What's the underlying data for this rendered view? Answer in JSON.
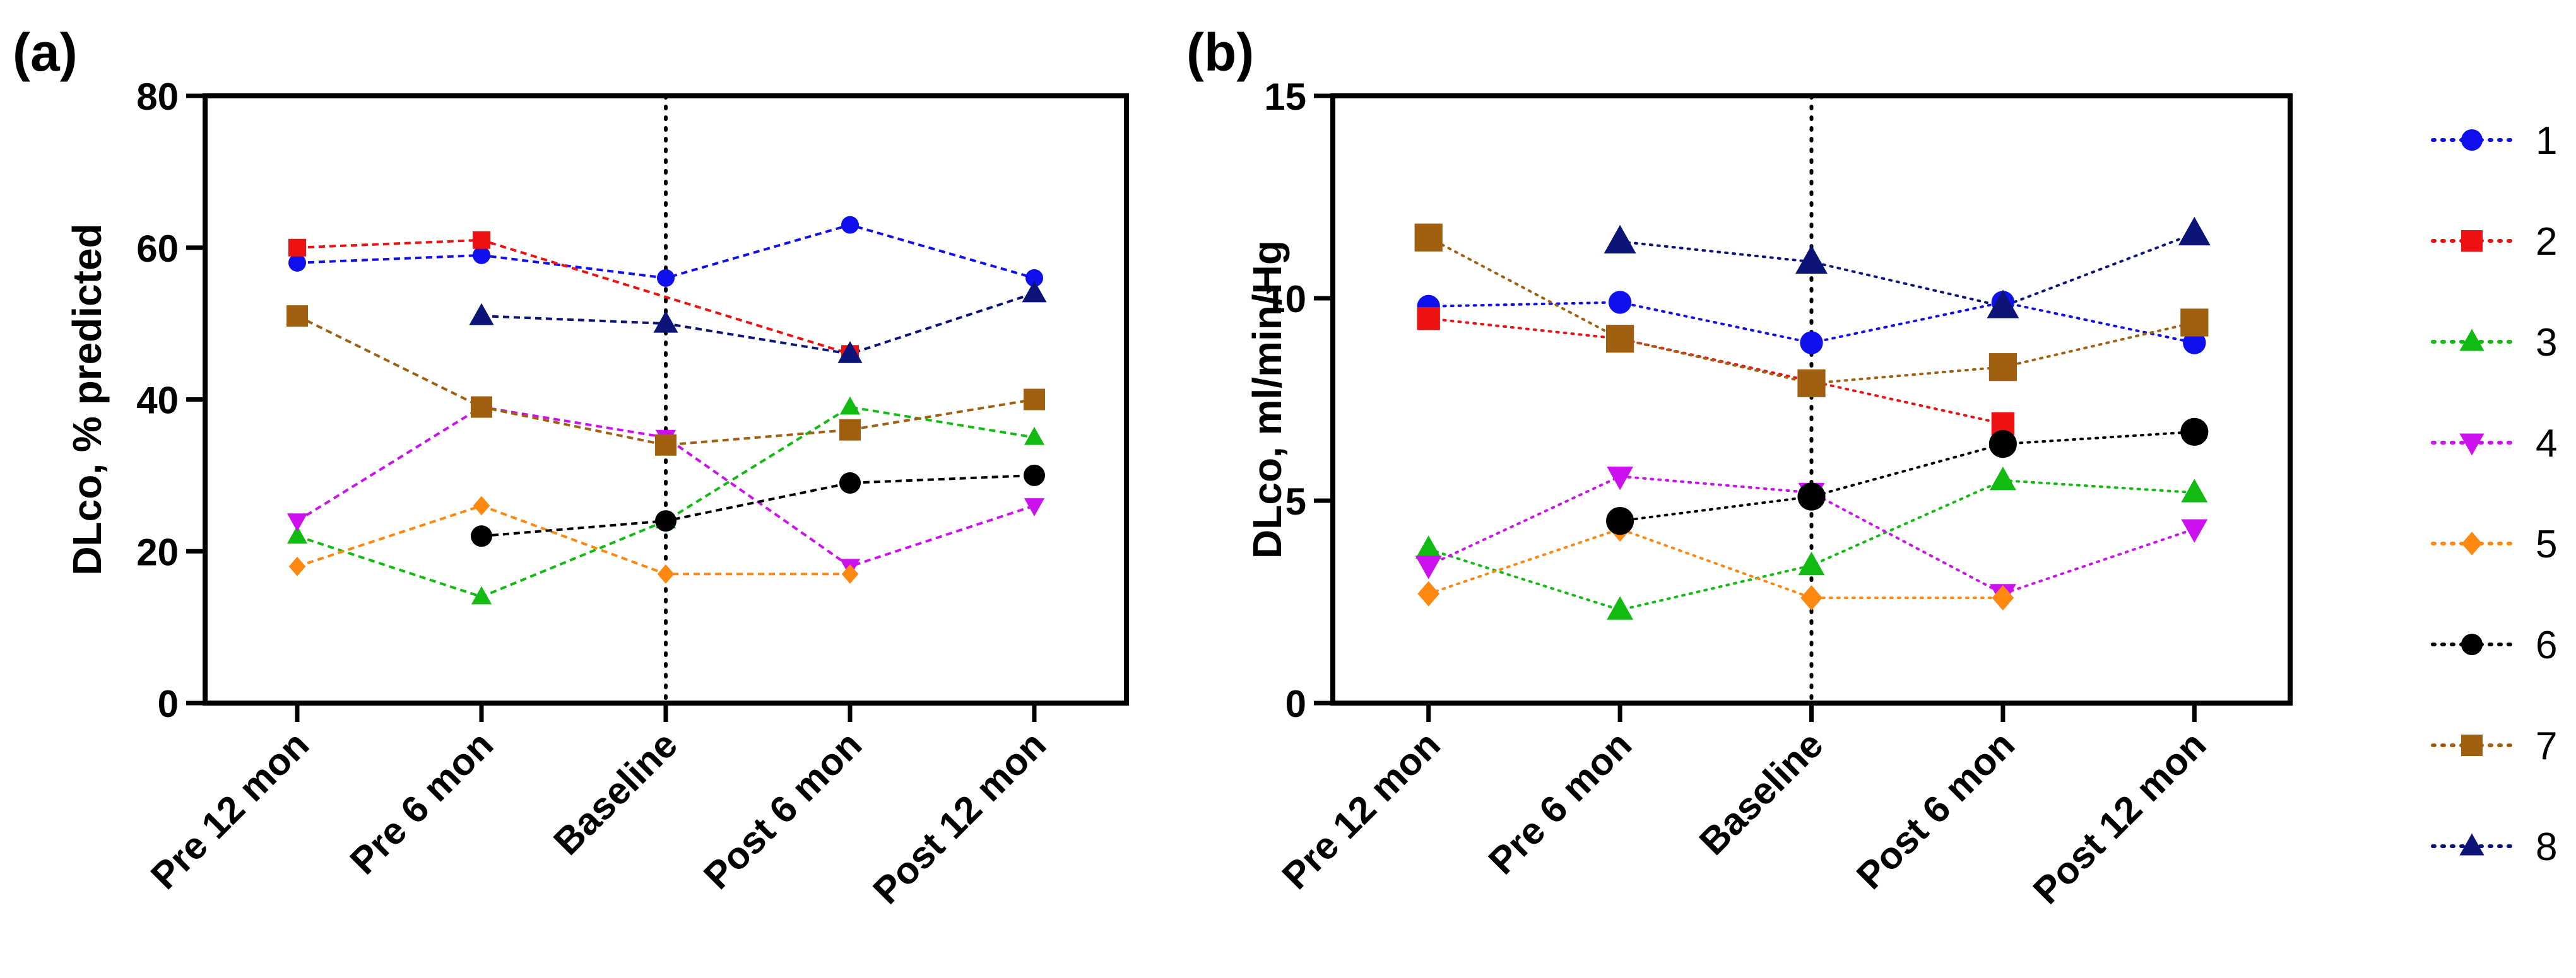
{
  "figure": {
    "legend": {
      "placement": "right",
      "entries": [
        {
          "label": "1",
          "color": "#1010ee",
          "marker": "circle"
        },
        {
          "label": "2",
          "color": "#ee1111",
          "marker": "square"
        },
        {
          "label": "3",
          "color": "#11bb11",
          "marker": "triangle-up"
        },
        {
          "label": "4",
          "color": "#cc11ee",
          "marker": "triangle-down"
        },
        {
          "label": "5",
          "color": "#ff8811",
          "marker": "diamond"
        },
        {
          "label": "6",
          "color": "#000000",
          "marker": "circle"
        },
        {
          "label": "7",
          "color": "#a06010",
          "marker": "square"
        },
        {
          "label": "8",
          "color": "#0c1477",
          "marker": "triangle-up"
        }
      ]
    }
  },
  "chart_data": [
    {
      "panel_label": "(a)",
      "type": "line",
      "title": "",
      "xlabel": "",
      "ylabel": "DLco, % predicted",
      "categories": [
        "Pre 12 mon",
        "Pre 6 mon",
        "Baseline",
        "Post 6 mon",
        "Post 12 mon"
      ],
      "ylim": [
        0,
        80
      ],
      "yticks": [
        0,
        20,
        40,
        60,
        80
      ],
      "ytick_labels": [
        "0",
        "20",
        "40",
        "60",
        "80"
      ],
      "line_style": "dashed",
      "reference_line": {
        "category": "Baseline",
        "style": "dotted"
      },
      "grid": false,
      "series": [
        {
          "name": "1",
          "values": [
            58,
            59,
            56,
            63,
            56
          ]
        },
        {
          "name": "2",
          "values": [
            60,
            61,
            null,
            46,
            null
          ]
        },
        {
          "name": "3",
          "values": [
            22,
            14,
            24,
            39,
            35
          ]
        },
        {
          "name": "4",
          "values": [
            24,
            39,
            35,
            18,
            26
          ]
        },
        {
          "name": "5",
          "values": [
            18,
            26,
            17,
            17,
            null
          ]
        },
        {
          "name": "6",
          "values": [
            null,
            22,
            24,
            29,
            30
          ]
        },
        {
          "name": "7",
          "values": [
            51,
            39,
            34,
            36,
            40
          ]
        },
        {
          "name": "8",
          "values": [
            null,
            51,
            50,
            46,
            54
          ]
        }
      ]
    },
    {
      "panel_label": "(b)",
      "type": "line",
      "title": "",
      "xlabel": "",
      "ylabel": "DLco, ml/min/Hg",
      "categories": [
        "Pre 12 mon",
        "Pre 6 mon",
        "Baseline",
        "Post 6 mon",
        "Post 12 mon"
      ],
      "ylim": [
        0,
        15
      ],
      "yticks": [
        0,
        5,
        10,
        15
      ],
      "ytick_labels": [
        "0",
        "5",
        "10",
        "15"
      ],
      "line_style": "dotted",
      "reference_line": {
        "category": "Baseline",
        "style": "dotted"
      },
      "grid": false,
      "series": [
        {
          "name": "1",
          "values": [
            9.8,
            9.9,
            8.9,
            9.9,
            8.9
          ]
        },
        {
          "name": "2",
          "values": [
            9.5,
            9.0,
            null,
            6.9,
            null
          ]
        },
        {
          "name": "3",
          "values": [
            3.8,
            2.3,
            3.4,
            5.5,
            5.2
          ]
        },
        {
          "name": "4",
          "values": [
            3.4,
            5.6,
            5.2,
            2.7,
            4.3
          ]
        },
        {
          "name": "5",
          "values": [
            2.7,
            4.3,
            2.6,
            2.6,
            null
          ]
        },
        {
          "name": "6",
          "values": [
            null,
            4.5,
            5.1,
            6.4,
            6.7
          ]
        },
        {
          "name": "7",
          "values": [
            11.5,
            9.0,
            7.9,
            8.3,
            9.4
          ]
        },
        {
          "name": "8",
          "values": [
            null,
            11.4,
            10.9,
            9.8,
            11.6
          ]
        }
      ]
    }
  ]
}
